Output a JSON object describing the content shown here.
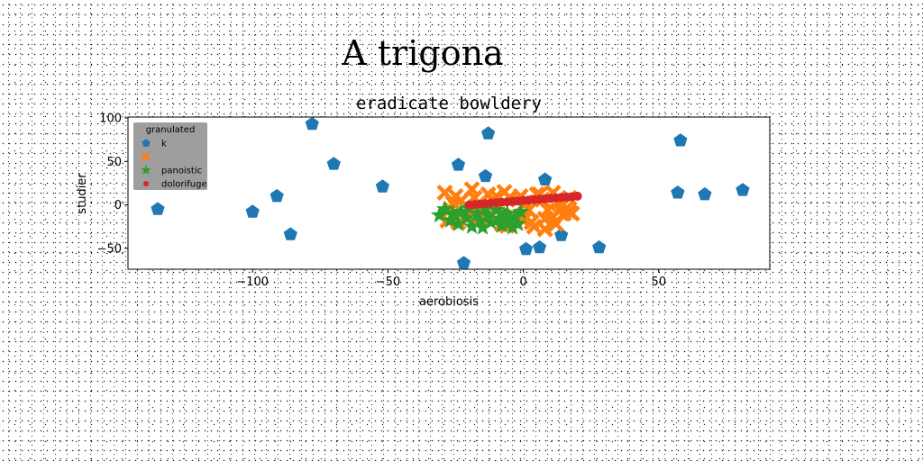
{
  "suptitle": "A trigona",
  "chart_data": {
    "type": "scatter",
    "title": "eradicate bowldery",
    "xlabel": "aerobiosis",
    "ylabel": "studier",
    "xlim": [
      -146,
      91
    ],
    "ylim": [
      -74,
      101
    ],
    "xticks": [
      -100,
      -50,
      0,
      50
    ],
    "yticks": [
      -50,
      0,
      50,
      100
    ],
    "xtick_labels": [
      "−100",
      "−50",
      "0",
      "50"
    ],
    "ytick_labels": [
      "−50",
      "0",
      "50",
      "100"
    ],
    "grid": false,
    "legend": {
      "title": "granulated",
      "location": "top-left",
      "background": "#999999"
    },
    "series": [
      {
        "name": "k",
        "marker": "pentagon",
        "color": "#1f77b4",
        "x": [
          -135,
          -100,
          -91,
          -86,
          -78,
          -70,
          -52,
          -24,
          -22,
          -14,
          -13,
          1,
          6,
          8,
          14,
          28,
          57,
          58,
          67,
          81
        ],
        "y": [
          -5,
          -8,
          10,
          -34,
          93,
          47,
          21,
          46,
          -67,
          33,
          82,
          -51,
          -49,
          29,
          -35,
          -49,
          14,
          74,
          12,
          17
        ]
      },
      {
        "name": "",
        "marker": "x-filled",
        "color": "#ff7f0e",
        "x": [
          -29,
          -27,
          -25,
          -23,
          -21,
          -19,
          -17,
          -15,
          -13,
          -11,
          -9,
          -7,
          -5,
          -3,
          -1,
          1,
          3,
          5,
          7,
          9,
          11,
          13,
          15,
          17,
          -28,
          -24,
          -20,
          -16,
          -12,
          -8,
          -4,
          0,
          4,
          8,
          12,
          16,
          18,
          -26,
          -18,
          -10,
          -2,
          6,
          14,
          8,
          11,
          2,
          -6,
          17
        ],
        "y": [
          14,
          -5,
          10,
          5,
          -12,
          18,
          0,
          -8,
          12,
          4,
          -2,
          15,
          8,
          -14,
          10,
          3,
          -20,
          12,
          6,
          -6,
          14,
          2,
          -10,
          8,
          -18,
          -20,
          -14,
          -16,
          -10,
          -22,
          -12,
          -18,
          -25,
          -16,
          -22,
          -4,
          -10,
          2,
          8,
          10,
          6,
          12,
          -2,
          -28,
          -14,
          -6,
          -24,
          -8
        ]
      },
      {
        "name": "panoistic",
        "marker": "star",
        "color": "#2ca02c",
        "x": [
          -31,
          -29,
          -27,
          -26,
          -24,
          -23,
          -21,
          -20,
          -19,
          -17,
          -16,
          -15,
          -13,
          -12,
          -10,
          -9,
          -8,
          -6,
          -5,
          -3,
          -2,
          -1,
          -4,
          -7,
          -14
        ],
        "y": [
          -12,
          -5,
          -18,
          -10,
          -22,
          -8,
          -15,
          -4,
          -25,
          -10,
          -18,
          -26,
          -12,
          -20,
          -6,
          -16,
          -24,
          -10,
          -20,
          -14,
          -22,
          -8,
          -26,
          -12,
          -4
        ]
      },
      {
        "name": "dolorifuge",
        "marker": "circle",
        "color": "#d62728",
        "x": [
          -20,
          -18,
          -16,
          -14,
          -12,
          -10,
          -8,
          -6,
          -4,
          -2,
          0,
          2,
          4,
          6,
          8,
          10,
          12,
          14,
          16,
          18,
          20
        ],
        "y": [
          0,
          0.5,
          1,
          1.5,
          2,
          2.5,
          3,
          3.5,
          4,
          4.5,
          5,
          5.5,
          6,
          6.5,
          7,
          7.5,
          8,
          8.5,
          9,
          9.5,
          10
        ]
      }
    ]
  }
}
